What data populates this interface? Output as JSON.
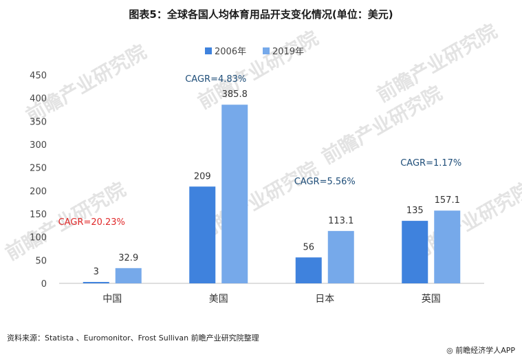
{
  "title": "图表5：全球各国人均体育用品开支变化情况(单位：美元)",
  "source": "资料来源：Statista 、Euromonitor、Frost Sullivan 前瞻产业研究院整理",
  "brand": "前瞻经济学人APP",
  "watermark": "前瞻产业研究院",
  "colors": {
    "series_2006": "#3f82dd",
    "series_2019": "#76a9ea",
    "cagr_red": "#e0292a",
    "cagr_blue": "#1f4e79",
    "axis": "#bfbfbf"
  },
  "chart_data": {
    "type": "bar",
    "title": "图表5：全球各国人均体育用品开支变化情况(单位：美元)",
    "categories": [
      "中国",
      "美国",
      "日本",
      "英国"
    ],
    "series": [
      {
        "name": "2006年",
        "values": [
          3,
          209,
          56,
          135
        ],
        "labels": [
          "3",
          "209",
          "56",
          "135"
        ]
      },
      {
        "name": "2019年",
        "values": [
          32.9,
          385.8,
          113.1,
          157.1
        ],
        "labels": [
          "32.9",
          "385.8",
          "113.1",
          "157.1"
        ]
      }
    ],
    "cagr": [
      {
        "category": "中国",
        "label": "CAGR=20.23%",
        "color": "red"
      },
      {
        "category": "美国",
        "label": "CAGR=4.83%",
        "color": "blue"
      },
      {
        "category": "日本",
        "label": "CAGR=5.56%",
        "color": "blue"
      },
      {
        "category": "英国",
        "label": "CAGR=1.17%",
        "color": "blue"
      }
    ],
    "ylim": [
      0,
      450
    ],
    "yticks": [
      0,
      50,
      100,
      150,
      200,
      250,
      300,
      350,
      400,
      450
    ],
    "xlabel": "",
    "ylabel": "",
    "grid": false,
    "legend": "top-center"
  }
}
